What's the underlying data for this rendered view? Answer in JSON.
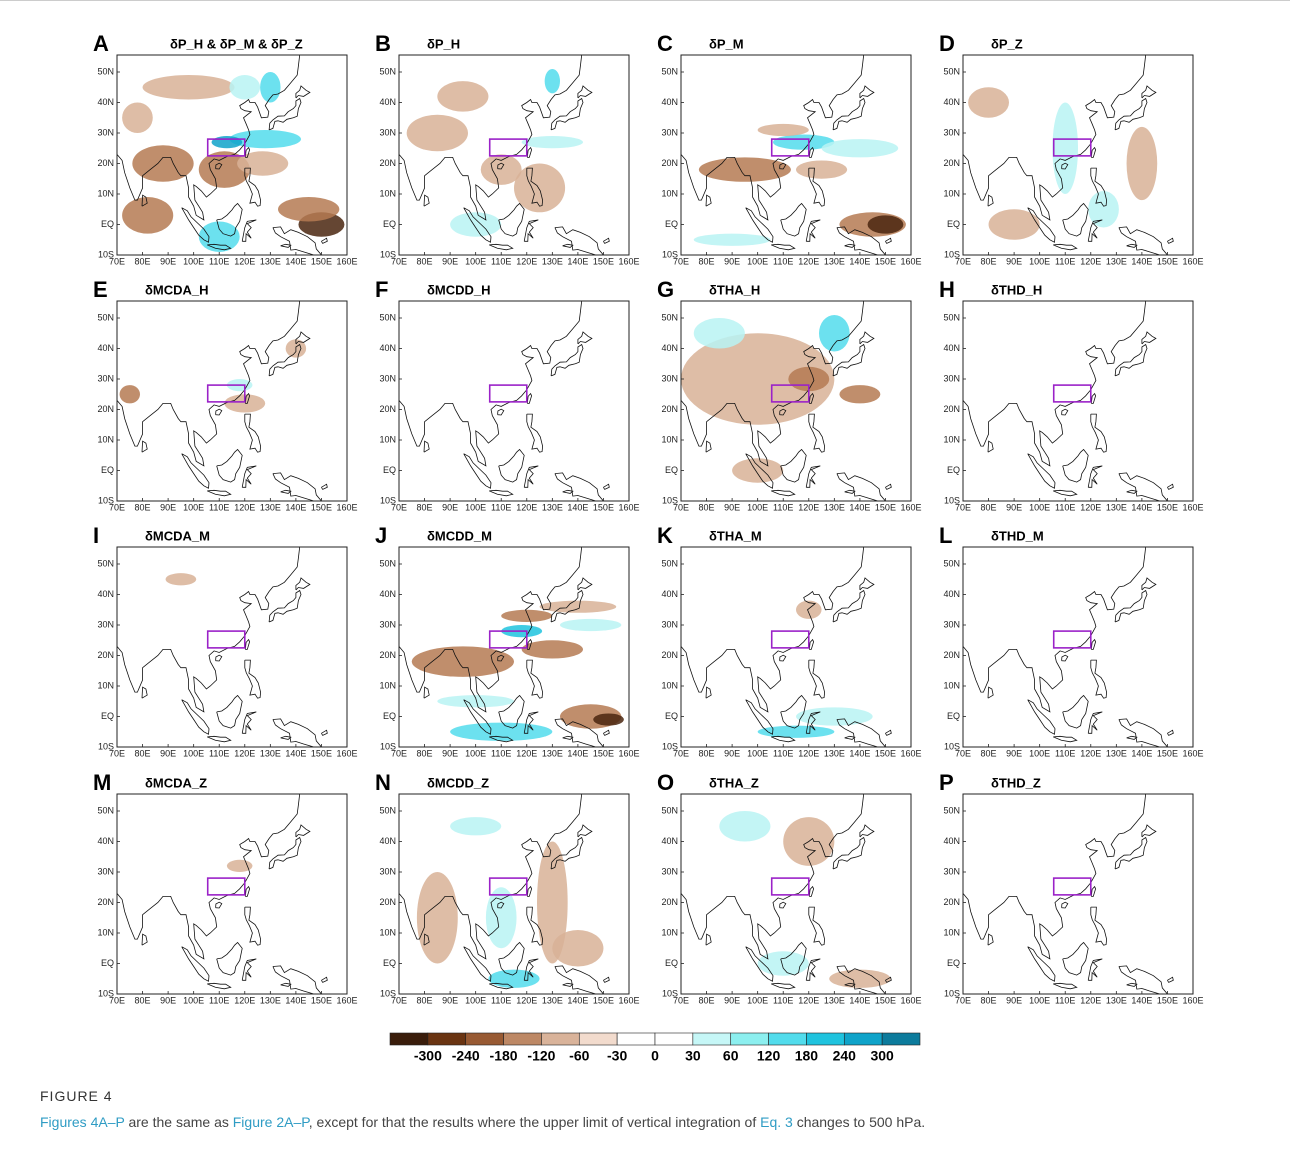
{
  "panels": [
    {
      "letter": "A",
      "title": "δP_H & δP_M & δP_Z"
    },
    {
      "letter": "B",
      "title": "δP_H"
    },
    {
      "letter": "C",
      "title": "δP_M"
    },
    {
      "letter": "D",
      "title": "δP_Z"
    },
    {
      "letter": "E",
      "title": "δMCDA_H"
    },
    {
      "letter": "F",
      "title": "δMCDD_H"
    },
    {
      "letter": "G",
      "title": "δTHA_H"
    },
    {
      "letter": "H",
      "title": "δTHD_H"
    },
    {
      "letter": "I",
      "title": "δMCDA_M"
    },
    {
      "letter": "J",
      "title": "δMCDD_M"
    },
    {
      "letter": "K",
      "title": "δTHA_M"
    },
    {
      "letter": "L",
      "title": "δTHD_M"
    },
    {
      "letter": "M",
      "title": "δMCDA_Z"
    },
    {
      "letter": "N",
      "title": "δMCDD_Z"
    },
    {
      "letter": "O",
      "title": "δTHA_Z"
    },
    {
      "letter": "P",
      "title": "δTHD_Z"
    }
  ],
  "map_axes": {
    "lat_labels": [
      "50N",
      "40N",
      "30N",
      "20N",
      "10N",
      "EQ",
      "10S"
    ],
    "lon_labels": [
      "70E",
      "80E",
      "90E",
      "100E",
      "110E",
      "120E",
      "130E",
      "140E",
      "150E",
      "160E"
    ]
  },
  "colorbar": {
    "labels": [
      -300,
      -240,
      -180,
      -120,
      -60,
      -30,
      0,
      30,
      60,
      120,
      180,
      240,
      300
    ],
    "colors": [
      "#3a1d0b",
      "#6a3412",
      "#985a33",
      "#bd8865",
      "#d9b39a",
      "#f2dbcd",
      "#ffffff",
      "#ffffff",
      "#c6f7f7",
      "#8cefef",
      "#52dcec",
      "#1fc3de",
      "#0fa3c9",
      "#0c7b9c"
    ]
  },
  "caption": {
    "figure_label": "FIGURE 4",
    "segments": [
      {
        "text": "Figures 4A–P",
        "link": true
      },
      {
        "text": " are the same as ",
        "link": false
      },
      {
        "text": "Figure 2A–P",
        "link": true
      },
      {
        "text": ", except for that the results where the upper limit of vertical integration of ",
        "link": false
      },
      {
        "text": "Eq. 3",
        "link": true
      },
      {
        "text": " changes to 500 hPa.",
        "link": false
      }
    ]
  }
}
